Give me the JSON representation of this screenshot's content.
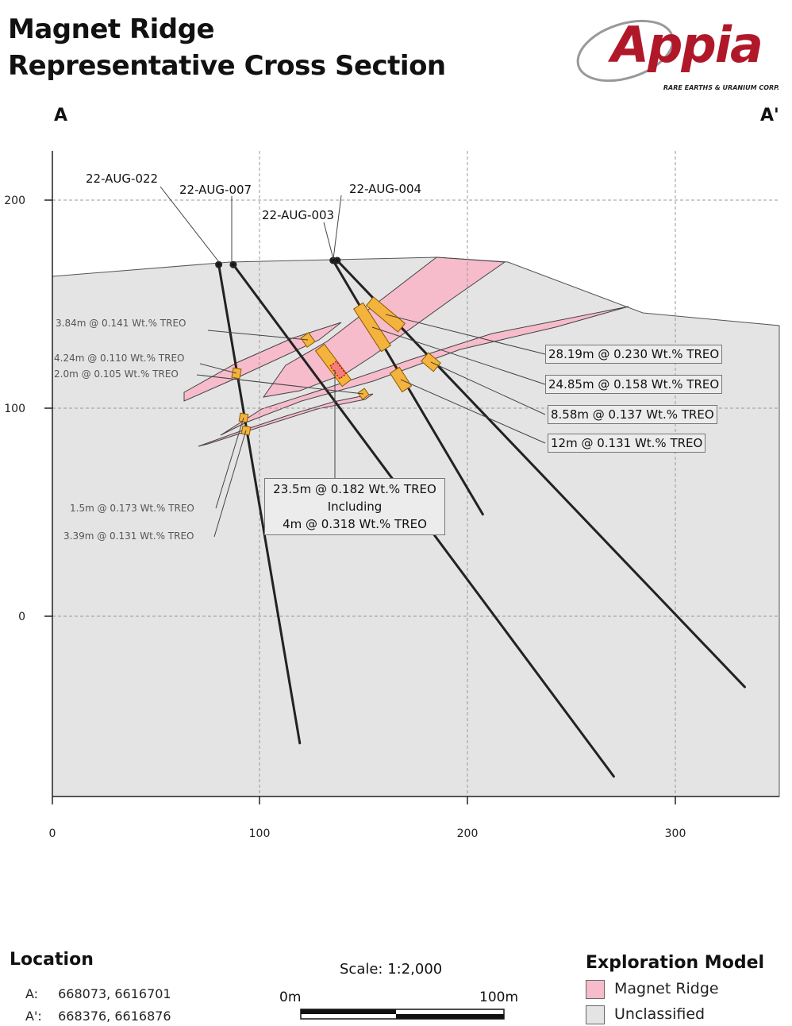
{
  "title_line1": "Magnet Ridge",
  "title_line2": "Representative Cross Section",
  "logo": {
    "name": "Appia",
    "tagline": "RARE EARTHS & URANIUM CORP."
  },
  "endpoints": {
    "start": "A",
    "end": "A'"
  },
  "axes": {
    "x_ticks": [
      "0",
      "100",
      "200",
      "300"
    ],
    "y_ticks": [
      "200",
      "100",
      "0"
    ]
  },
  "drillholes": [
    {
      "id": "22-AUG-022",
      "collar": [
        80,
        169
      ],
      "toe": [
        119,
        -61
      ]
    },
    {
      "id": "22-AUG-007",
      "collar": [
        87,
        169
      ],
      "toe": [
        270,
        -77
      ]
    },
    {
      "id": "22-AUG-003",
      "collar": [
        135,
        171
      ],
      "toe": [
        207,
        49
      ]
    },
    {
      "id": "22-AUG-004",
      "collar": [
        137,
        171
      ],
      "toe": [
        333,
        -34
      ]
    }
  ],
  "intercepts": [
    {
      "label": "3.84m @ 0.141 Wt.% TREO",
      "boxed": false
    },
    {
      "label": "4.24m @ 0.110 Wt.% TREO",
      "boxed": false
    },
    {
      "label": "2.0m @ 0.105 Wt.% TREO",
      "boxed": false
    },
    {
      "label": "1.5m @ 0.173 Wt.% TREO",
      "boxed": false
    },
    {
      "label": "3.39m @ 0.131 Wt.% TREO",
      "boxed": false
    },
    {
      "label": "28.19m @ 0.230 Wt.% TREO",
      "boxed": true
    },
    {
      "label": "24.85m @ 0.158 Wt.% TREO",
      "boxed": true
    },
    {
      "label": "8.58m @ 0.137 Wt.% TREO",
      "boxed": true
    },
    {
      "label": "12m @ 0.131 Wt.% TREO",
      "boxed": true
    }
  ],
  "callout_multi": {
    "line1": "23.5m @ 0.182 Wt.% TREO",
    "line2": "Including",
    "line3": "4m @ 0.318 Wt.% TREO"
  },
  "location": {
    "title": "Location",
    "rows": [
      {
        "key": "A:",
        "value": "668073, 6616701"
      },
      {
        "key": "A':",
        "value": "668376, 6616876"
      }
    ]
  },
  "scale": {
    "text": "Scale: 1:2,000",
    "left_label": "0m",
    "right_label": "100m"
  },
  "legend": {
    "title": "Exploration Model",
    "items": [
      {
        "label": "Magnet Ridge",
        "color": "#f6bccb"
      },
      {
        "label": "Unclassified",
        "color": "#e4e4e4"
      }
    ]
  },
  "colors": {
    "unclassified": "#e4e4e4",
    "magnet_ridge": "#f6bccb",
    "mineralized_interval": "#f3b33c",
    "logo_red": "#b0182a"
  }
}
